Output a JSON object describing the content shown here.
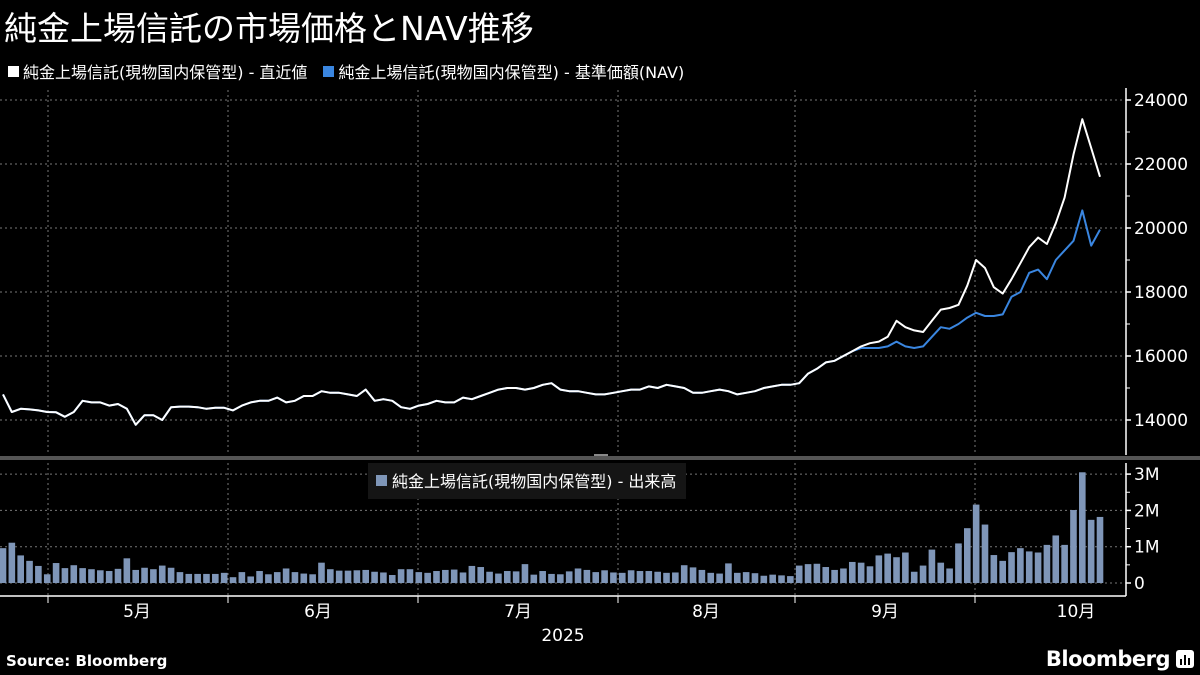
{
  "header": {
    "title": "純金上場信託の市場価格とNAV推移",
    "legend": [
      {
        "label": "純金上場信託(現物国内保管型) - 直近値",
        "color": "#ffffff"
      },
      {
        "label": "純金上場信託(現物国内保管型) - 基準価額(NAV)",
        "color": "#3a86e0"
      }
    ]
  },
  "volume_legend": {
    "label": "純金上場信託(現物国内保管型) - 出来高",
    "color": "#7f96b8"
  },
  "footer": {
    "source": "Source: Bloomberg",
    "brand": "Bloomberg"
  },
  "chart_data": [
    {
      "type": "line",
      "title": "純金上場信託の市場価格とNAV推移",
      "xlabel": "2025",
      "ylabel": "",
      "ylim": [
        13000,
        24400
      ],
      "y_ticks": [
        14000,
        16000,
        18000,
        20000,
        22000,
        24000
      ],
      "x_ticks": [
        "5月",
        "6月",
        "7月",
        "8月",
        "9月",
        "10月"
      ],
      "grid": true,
      "legend_position": "top-left",
      "series": [
        {
          "name": "純金上場信託(現物国内保管型) - 直近値",
          "color": "#ffffff",
          "values": [
            14800,
            14250,
            14350,
            14330,
            14300,
            14250,
            14240,
            14100,
            14250,
            14600,
            14550,
            14550,
            14450,
            14500,
            14350,
            13850,
            14150,
            14150,
            14000,
            14400,
            14420,
            14420,
            14400,
            14350,
            14380,
            14380,
            14300,
            14450,
            14550,
            14600,
            14600,
            14700,
            14550,
            14600,
            14750,
            14750,
            14900,
            14850,
            14850,
            14800,
            14750,
            14950,
            14600,
            14650,
            14600,
            14400,
            14350,
            14450,
            14500,
            14600,
            14550,
            14550,
            14700,
            14650,
            14750,
            14850,
            14950,
            15000,
            15000,
            14950,
            15000,
            15100,
            15150,
            14950,
            14900,
            14900,
            14850,
            14800,
            14800,
            14850,
            14900,
            14950,
            14950,
            15050,
            15000,
            15100,
            15050,
            15000,
            14850,
            14850,
            14900,
            14950,
            14900,
            14800,
            14850,
            14900,
            15000,
            15050,
            15100,
            15100,
            15150,
            15450,
            15600,
            15800,
            15850,
            16000,
            16150,
            16300,
            16400,
            16450,
            16600,
            17100,
            16900,
            16800,
            16750,
            17100,
            17450,
            17500,
            17600,
            18200,
            19000,
            18750,
            18150,
            17950,
            18400,
            18900,
            19400,
            19700,
            19500,
            20150,
            20950,
            22300,
            23400,
            22500,
            21600
          ],
          "note": "values estimated from pixels"
        },
        {
          "name": "純金上場信託(現物国内保管型) - 基準価額(NAV)",
          "color": "#3a86e0",
          "values": [
            14800,
            14250,
            14350,
            14330,
            14300,
            14250,
            14240,
            14100,
            14250,
            14600,
            14550,
            14550,
            14450,
            14500,
            14350,
            13850,
            14150,
            14150,
            14000,
            14400,
            14420,
            14420,
            14400,
            14350,
            14380,
            14380,
            14300,
            14450,
            14550,
            14600,
            14600,
            14700,
            14550,
            14600,
            14750,
            14750,
            14900,
            14850,
            14850,
            14800,
            14750,
            14950,
            14600,
            14650,
            14600,
            14400,
            14350,
            14450,
            14500,
            14600,
            14550,
            14550,
            14700,
            14650,
            14750,
            14850,
            14950,
            15000,
            15000,
            14950,
            15000,
            15100,
            15150,
            14950,
            14900,
            14900,
            14850,
            14800,
            14800,
            14850,
            14900,
            14950,
            14950,
            15050,
            15000,
            15100,
            15050,
            15000,
            14850,
            14850,
            14900,
            14950,
            14900,
            14800,
            14850,
            14900,
            15000,
            15050,
            15100,
            15100,
            15150,
            15450,
            15600,
            15800,
            15850,
            16000,
            16150,
            16250,
            16250,
            16250,
            16300,
            16450,
            16300,
            16250,
            16300,
            16600,
            16900,
            16850,
            17000,
            17200,
            17350,
            17250,
            17250,
            17300,
            17850,
            18000,
            18600,
            18700,
            18400,
            19000,
            19300,
            19600,
            20550,
            19450,
            19950
          ],
          "note": "values estimated from pixels"
        }
      ]
    },
    {
      "type": "bar",
      "title": "純金上場信託(現物国内保管型) - 出来高",
      "ylim": [
        0,
        3200000
      ],
      "y_ticks": [
        "0",
        "1M",
        "2M",
        "3M"
      ],
      "series": [
        {
          "name": "純金上場信託(現物国内保管型) - 出来高",
          "color": "#7f96b8",
          "values": [
            960000,
            1110000,
            760000,
            610000,
            470000,
            240000,
            550000,
            410000,
            490000,
            410000,
            380000,
            350000,
            330000,
            390000,
            680000,
            360000,
            420000,
            380000,
            480000,
            420000,
            300000,
            250000,
            250000,
            250000,
            250000,
            280000,
            160000,
            300000,
            180000,
            330000,
            240000,
            300000,
            400000,
            300000,
            260000,
            240000,
            560000,
            380000,
            340000,
            340000,
            350000,
            360000,
            310000,
            290000,
            220000,
            380000,
            380000,
            300000,
            280000,
            330000,
            360000,
            370000,
            290000,
            470000,
            440000,
            310000,
            260000,
            330000,
            320000,
            520000,
            230000,
            330000,
            250000,
            240000,
            320000,
            400000,
            360000,
            300000,
            350000,
            290000,
            280000,
            350000,
            330000,
            330000,
            310000,
            280000,
            290000,
            490000,
            430000,
            360000,
            280000,
            260000,
            540000,
            280000,
            300000,
            270000,
            200000,
            230000,
            210000,
            190000,
            480000,
            520000,
            530000,
            440000,
            360000,
            400000,
            580000,
            560000,
            460000,
            760000,
            810000,
            710000,
            840000,
            310000,
            480000,
            920000,
            560000,
            400000,
            1090000,
            1510000,
            2160000,
            1610000,
            770000,
            610000,
            850000,
            960000,
            870000,
            840000,
            1050000,
            1310000,
            1050000,
            2010000,
            3050000,
            1740000,
            1820000
          ],
          "note": "values estimated from pixels"
        }
      ]
    }
  ]
}
